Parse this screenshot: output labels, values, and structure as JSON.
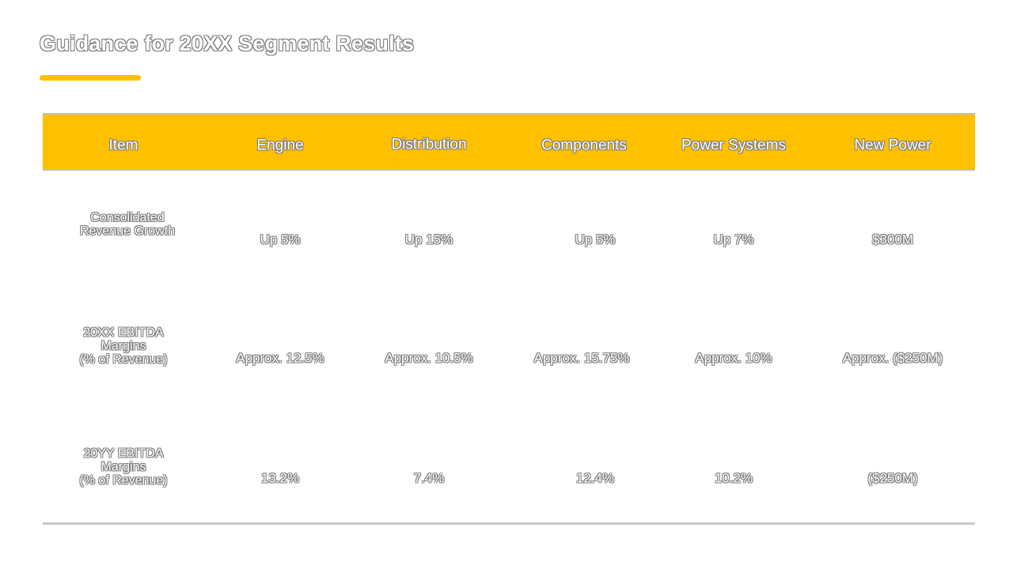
{
  "slide": {
    "title": "Guidance for 20XX Segment Results",
    "accent_color": "#FFC000"
  },
  "table": {
    "columns": [
      "Item",
      "Engine",
      "Distribution",
      "Components",
      "Power Systems",
      "New Power"
    ],
    "rows": [
      {
        "label_lines": [
          "Consolidated",
          "Revenue Growth"
        ],
        "values": [
          "Up 5%",
          "Up 15%",
          "Up 5%",
          "Up 7%",
          "$300M"
        ]
      },
      {
        "label_lines": [
          "20XX EBITDA",
          "Margins",
          "(% of Revenue)"
        ],
        "values": [
          "Approx. 12.5%",
          "Approx. 10.5%",
          "Approx. 15.75%",
          "Approx. 10%",
          "Approx. ($250M)"
        ]
      },
      {
        "label_lines": [
          "20YY EBITDA",
          "Margins",
          "(% of Revenue)"
        ],
        "values": [
          "13.2%",
          "7.4%",
          "12.4%",
          "10.2%",
          "($250M)"
        ]
      }
    ]
  }
}
